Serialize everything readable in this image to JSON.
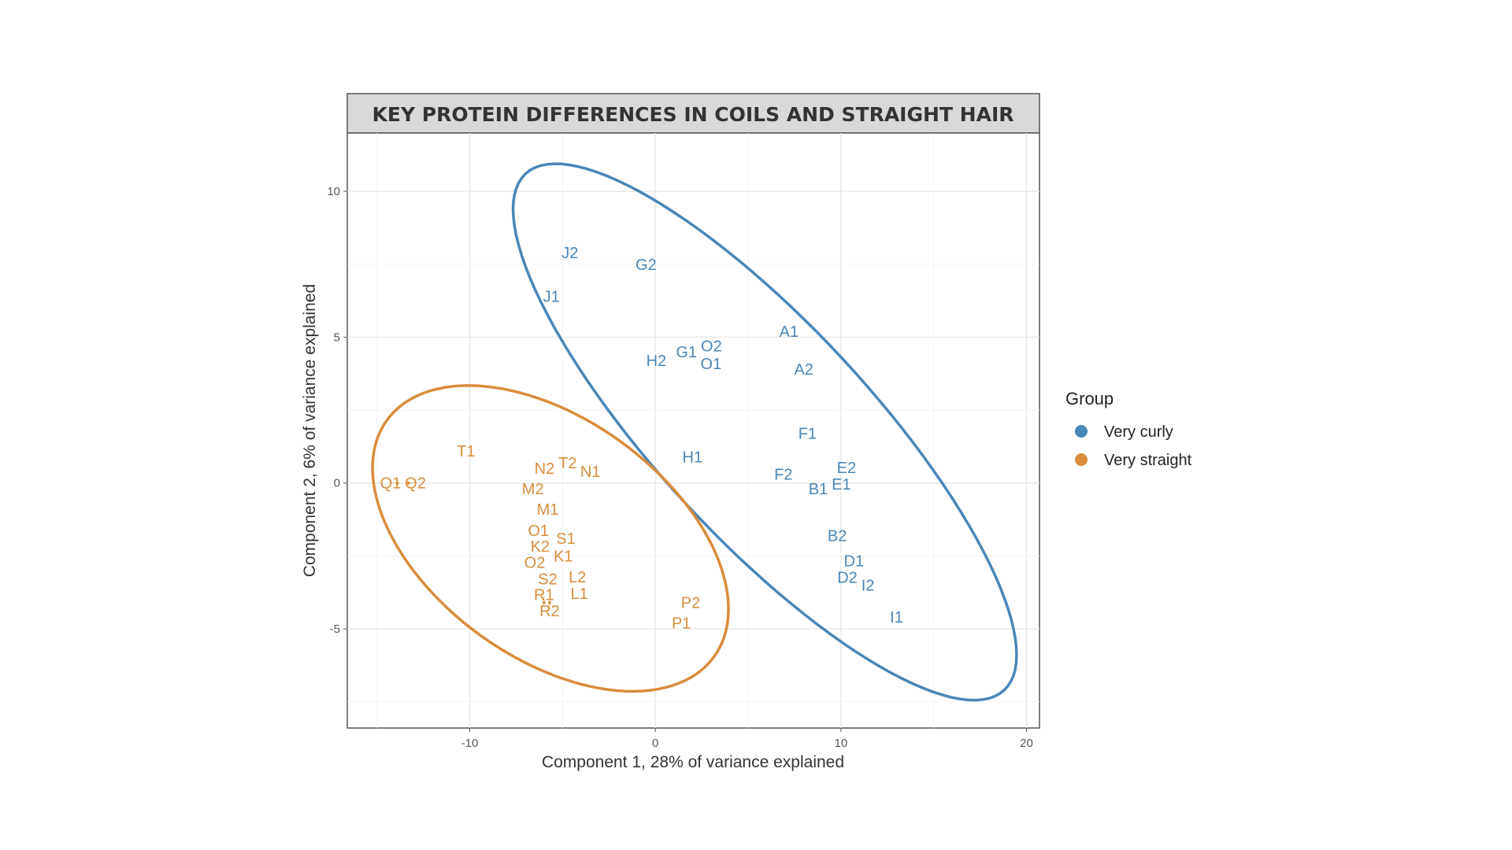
{
  "chart_data": {
    "type": "scatter",
    "title": "KEY PROTEIN DIFFERENCES IN COILS AND STRAIGHT HAIR",
    "xlabel": "Component 1, 28% of variance explained",
    "ylabel": "Component 2, 6% of variance explained",
    "xlim": [
      -16.6,
      20.7
    ],
    "ylim": [
      -8.4,
      12.0
    ],
    "xticks": [
      -10,
      0,
      10,
      20
    ],
    "yticks": [
      -5,
      0,
      5,
      10
    ],
    "grid": true,
    "legend": {
      "title": "Group",
      "position": "right"
    },
    "series": [
      {
        "name": "Very curly",
        "color": "#4a86b8",
        "ellipse": {
          "center": [
            5.9,
            1.75
          ],
          "major": [
            12.9,
            -8.85
          ],
          "minor": [
            4.2,
            2.5
          ]
        },
        "points": [
          {
            "label": "J2",
            "x": -4.6,
            "y": 7.9
          },
          {
            "label": "G2",
            "x": -0.5,
            "y": 7.5
          },
          {
            "label": "J1",
            "x": -5.6,
            "y": 6.4
          },
          {
            "label": "A1",
            "x": 7.2,
            "y": 5.2
          },
          {
            "label": "G1",
            "x": 1.7,
            "y": 4.5
          },
          {
            "label": "O2",
            "x": 3.0,
            "y": 4.7
          },
          {
            "label": "O1",
            "x": 3.0,
            "y": 4.1
          },
          {
            "label": "H2",
            "x": 0.05,
            "y": 4.2
          },
          {
            "label": "A2",
            "x": 8.0,
            "y": 3.9
          },
          {
            "label": "F1",
            "x": 8.2,
            "y": 1.7
          },
          {
            "label": "H1",
            "x": 2.0,
            "y": 0.9
          },
          {
            "label": "F2",
            "x": 6.9,
            "y": 0.3
          },
          {
            "label": "E2",
            "x": 10.3,
            "y": 0.4
          },
          {
            "label": "E1",
            "x": 9.9,
            "y": 0.1
          },
          {
            "label": "B1",
            "x": 8.9,
            "y": -0.2
          },
          {
            "label": "B2",
            "x": 9.8,
            "y": -1.8
          },
          {
            "label": "D1",
            "x": 10.7,
            "y": -2.8
          },
          {
            "label": "D2",
            "x": 10.5,
            "y": -3.1
          },
          {
            "label": "I2",
            "x": 11.3,
            "y": -3.5
          },
          {
            "label": "I1",
            "x": 13.0,
            "y": -4.6
          }
        ]
      },
      {
        "name": "Very straight",
        "color": "#d98c3c",
        "ellipse": {
          "center": [
            -5.65,
            -1.9
          ],
          "major": [
            8.83,
            -4.04
          ],
          "minor": [
            3.74,
            3.34
          ]
        },
        "points": [
          {
            "label": "T1",
            "x": -10.2,
            "y": 1.1
          },
          {
            "label": "Q1",
            "x": -13.9,
            "y": 0.0
          },
          {
            "label": "Q2",
            "x": -13.3,
            "y": 0.0
          },
          {
            "label": "N2",
            "x": -5.9,
            "y": 0.5
          },
          {
            "label": "T2",
            "x": -4.8,
            "y": 0.7
          },
          {
            "label": "N1",
            "x": -3.5,
            "y": 0.4
          },
          {
            "label": "M2",
            "x": -6.6,
            "y": -0.2
          },
          {
            "label": "M1",
            "x": -5.8,
            "y": -0.9
          },
          {
            "label": "O1",
            "x": -6.3,
            "y": -1.7
          },
          {
            "label": "S1",
            "x": -4.9,
            "y": -1.9
          },
          {
            "label": "K2",
            "x": -6.0,
            "y": -2.2
          },
          {
            "label": "K1",
            "x": -5.1,
            "y": -2.5
          },
          {
            "label": "O2",
            "x": -6.5,
            "y": -2.7
          },
          {
            "label": "S2",
            "x": -5.8,
            "y": -3.2
          },
          {
            "label": "L2",
            "x": -4.2,
            "y": -3.4
          },
          {
            "label": "L1",
            "x": -4.1,
            "y": -3.6
          },
          {
            "label": "R1",
            "x": -6.0,
            "y": -4.1
          },
          {
            "label": "R2",
            "x": -5.7,
            "y": -4.1
          },
          {
            "label": "P2",
            "x": 1.9,
            "y": -4.1
          },
          {
            "label": "P1",
            "x": 1.4,
            "y": -4.8
          }
        ]
      }
    ]
  }
}
